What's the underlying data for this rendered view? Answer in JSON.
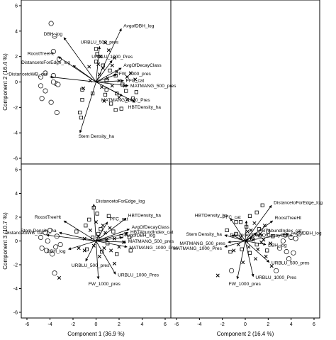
{
  "chart_data": [
    {
      "type": "scatter",
      "panel": "component-1-vs-component-2",
      "xlabel": "",
      "ylabel": "Component 2  (16.4 %)",
      "xlim": [
        -6,
        6
      ],
      "ylim": [
        -6,
        6
      ],
      "xticks": [],
      "yticks": [
        -6,
        -4,
        -2,
        0,
        2,
        4,
        6
      ],
      "vectors": [
        {
          "name": "DBH_log",
          "x": -2.8,
          "y": 3.5
        },
        {
          "name": "RoostTreeHt",
          "x": -3.3,
          "y": 2.0
        },
        {
          "name": "URBLU_500_pres",
          "x": 0.3,
          "y": 2.8
        },
        {
          "name": "AvgofDBH_log",
          "x": 2.2,
          "y": 4.2
        },
        {
          "name": "DistancetoForEdge_log",
          "x": -2.0,
          "y": 1.3
        },
        {
          "name": "URBLU_1000_Pres",
          "x": 1.4,
          "y": 1.7
        },
        {
          "name": "AvgOfDecayClass",
          "x": 2.2,
          "y": 1.1
        },
        {
          "name": "DistancetoWB_cat",
          "x": -4.0,
          "y": 0.4
        },
        {
          "name": "FW_1000_pres",
          "x": 1.8,
          "y": 0.6
        },
        {
          "name": "PFC_cat",
          "x": 2.4,
          "y": 0.1
        },
        {
          "name": "MATMANG_500_pres",
          "x": 2.8,
          "y": -0.3
        },
        {
          "name": "MATMANG_1000_Pres",
          "x": 2.3,
          "y": -1.1
        },
        {
          "name": "HBTDensity_ha",
          "x": 3.4,
          "y": -1.6
        },
        {
          "name": "Stem Density_ha",
          "x": -1.4,
          "y": -4.0
        }
      ],
      "circles": [
        [
          -3.9,
          4.6
        ],
        [
          -3.6,
          3.6
        ],
        [
          -3.7,
          2.4
        ],
        [
          -3.2,
          1.8
        ],
        [
          -4.8,
          0.4
        ],
        [
          -4.4,
          0.7
        ],
        [
          -3.7,
          0.5
        ],
        [
          -3.5,
          -0.1
        ],
        [
          -4.8,
          -0.3
        ],
        [
          -3.3,
          -0.2
        ],
        [
          -4.4,
          -0.7
        ],
        [
          -4.7,
          -1.3
        ],
        [
          -3.9,
          -1.6
        ],
        [
          -3.4,
          -2.4
        ],
        [
          -3.7,
          0.0
        ]
      ],
      "squares": [
        [
          0.0,
          2.6
        ],
        [
          0.1,
          2.2
        ],
        [
          0.0,
          1.6
        ],
        [
          0.6,
          1.3
        ],
        [
          1.2,
          0.9
        ],
        [
          1.7,
          0.5
        ],
        [
          0.9,
          0.1
        ],
        [
          -0.3,
          -0.9
        ],
        [
          -1.2,
          -0.6
        ],
        [
          -1.2,
          -1.4
        ],
        [
          0.8,
          -1.0
        ],
        [
          1.8,
          -0.9
        ],
        [
          2.3,
          -0.2
        ],
        [
          2.6,
          -0.7
        ],
        [
          3.2,
          -1.3
        ],
        [
          1.3,
          -1.7
        ],
        [
          1.7,
          -2.2
        ],
        [
          2.2,
          -2.1
        ],
        [
          -1.4,
          -2.4
        ],
        [
          -1.3,
          -2.8
        ],
        [
          0.9,
          -0.6
        ],
        [
          3.5,
          -0.8
        ]
      ],
      "crosses": [
        [
          0.8,
          3.1
        ],
        [
          1.1,
          2.5
        ],
        [
          0.4,
          2.0
        ],
        [
          1.6,
          1.9
        ],
        [
          1.4,
          1.3
        ],
        [
          0.6,
          1.1
        ],
        [
          0.3,
          0.6
        ],
        [
          1.0,
          0.3
        ],
        [
          2.0,
          0.1
        ],
        [
          2.7,
          0.4
        ],
        [
          3.0,
          0.7
        ],
        [
          1.4,
          -0.3
        ],
        [
          0.5,
          -0.4
        ],
        [
          -0.5,
          0.1
        ],
        [
          -1.1,
          -0.5
        ],
        [
          3.4,
          0.2
        ],
        [
          2.0,
          -1.2
        ],
        [
          2.7,
          -1.4
        ],
        [
          0.7,
          -1.5
        ],
        [
          2.5,
          -0.3
        ],
        [
          1.8,
          0.8
        ],
        [
          0.2,
          1.4
        ],
        [
          -0.6,
          1.2
        ]
      ]
    },
    {
      "type": "scatter",
      "panel": "component-1-vs-component-3",
      "xlabel": "Component 1  (36.9 %)",
      "ylabel": "Component 3  (10.7 %)",
      "xlim": [
        -6,
        6
      ],
      "ylim": [
        -6,
        6
      ],
      "xticks": [
        -6,
        -4,
        -2,
        0,
        2,
        4,
        6
      ],
      "yticks": [
        -6,
        -4,
        -2,
        0,
        2,
        4,
        6
      ],
      "vectors": [
        {
          "name": "DistancetoForEdge_log",
          "x": -0.2,
          "y": 3.1
        },
        {
          "name": "RoostTreeHt",
          "x": -2.8,
          "y": 1.7
        },
        {
          "name": "Stem Density_ha",
          "x": -3.2,
          "y": 0.7
        },
        {
          "name": "DistancetoWB_cat",
          "x": -4.3,
          "y": 0.5
        },
        {
          "name": "PFC_cat",
          "x": 1.0,
          "y": 1.6
        },
        {
          "name": "HBTDensity_ha",
          "x": 2.6,
          "y": 1.9
        },
        {
          "name": "AvgOfDecayClass",
          "x": 2.9,
          "y": 1.0
        },
        {
          "name": "HBTAbundIndex_cat",
          "x": 2.8,
          "y": 0.7
        },
        {
          "name": "AvgofDBH_log",
          "x": 2.3,
          "y": 0.3
        },
        {
          "name": "MATMANG_500_pres",
          "x": 2.6,
          "y": -0.1
        },
        {
          "name": "MATMANG_1000_Pres",
          "x": 2.7,
          "y": -0.5
        },
        {
          "name": "DBH_log",
          "x": -2.4,
          "y": -0.7
        },
        {
          "name": "URBLU_500_pres",
          "x": -0.9,
          "y": -1.7
        },
        {
          "name": "URBLU_1000_Pres",
          "x": 1.7,
          "y": -2.8
        },
        {
          "name": "FW_1000_pres",
          "x": 0.2,
          "y": -3.2
        }
      ],
      "circles": [
        [
          -4.8,
          0.3
        ],
        [
          -4.4,
          0.7
        ],
        [
          -4.0,
          0.9
        ],
        [
          -3.4,
          0.4
        ],
        [
          -4.7,
          -0.6
        ],
        [
          -4.3,
          -0.8
        ],
        [
          -3.5,
          -0.5
        ],
        [
          -3.1,
          -0.3
        ],
        [
          -3.8,
          -1.1
        ],
        [
          -4.2,
          0.0
        ],
        [
          -3.6,
          -2.7
        ]
      ],
      "squares": [
        [
          -0.2,
          2.8
        ],
        [
          0.1,
          2.3
        ],
        [
          1.1,
          2.1
        ],
        [
          -0.6,
          1.8
        ],
        [
          -0.9,
          1.3
        ],
        [
          0.4,
          1.0
        ],
        [
          1.5,
          0.8
        ],
        [
          2.2,
          0.4
        ],
        [
          -0.3,
          0.3
        ],
        [
          1.0,
          -0.2
        ],
        [
          2.9,
          0.3
        ],
        [
          -0.8,
          -0.7
        ],
        [
          0.5,
          -0.9
        ],
        [
          1.8,
          -1.1
        ],
        [
          3.0,
          -0.8
        ],
        [
          0.2,
          0.6
        ],
        [
          -1.7,
          0.8
        ]
      ],
      "crosses": [
        [
          0.0,
          1.6
        ],
        [
          0.6,
          1.3
        ],
        [
          1.2,
          1.1
        ],
        [
          -0.5,
          0.9
        ],
        [
          0.2,
          0.4
        ],
        [
          0.9,
          0.1
        ],
        [
          1.6,
          0.2
        ],
        [
          2.4,
          -0.1
        ],
        [
          -1.0,
          0.2
        ],
        [
          -0.2,
          -0.4
        ],
        [
          0.7,
          -0.6
        ],
        [
          1.3,
          -0.8
        ],
        [
          2.0,
          -0.5
        ],
        [
          -1.5,
          -0.6
        ],
        [
          0.3,
          -1.3
        ],
        [
          1.6,
          -1.9
        ],
        [
          -3.2,
          -3.1
        ],
        [
          2.6,
          0.6
        ],
        [
          -1.0,
          -0.8
        ],
        [
          0.8,
          0.7
        ]
      ]
    },
    {
      "type": "scatter",
      "panel": "component-2-vs-component-3",
      "xlabel": "Component 2  (16.4 %)",
      "ylabel": "",
      "xlim": [
        -6,
        6
      ],
      "ylim": [
        -6,
        6
      ],
      "xticks": [
        -6,
        -4,
        -2,
        0,
        2,
        4,
        6
      ],
      "yticks": [],
      "vectors": [
        {
          "name": "DistancetoForEdge_log",
          "x": 2.3,
          "y": 3.0
        },
        {
          "name": "HBTDensity_ha",
          "x": -1.3,
          "y": 1.9
        },
        {
          "name": "PFC_cat",
          "x": 0.1,
          "y": 1.7
        },
        {
          "name": "RoostTreeHt",
          "x": 2.4,
          "y": 1.7
        },
        {
          "name": "HBTAbundIndex_cat",
          "x": 1.0,
          "y": 0.7
        },
        {
          "name": "AvgofDBH_log",
          "x": 3.8,
          "y": 0.6
        },
        {
          "name": "Stem Density_ha",
          "x": -1.8,
          "y": 0.5
        },
        {
          "name": "DistancetoEdge",
          "x": -1.2,
          "y": 0.5
        },
        {
          "name": "AvgOfDecayClass",
          "x": 0.6,
          "y": 0.3
        },
        {
          "name": "MATMANG_500_pres",
          "x": -1.5,
          "y": -0.1
        },
        {
          "name": "MATMANG_1000_Pres",
          "x": -1.8,
          "y": -0.5
        },
        {
          "name": "DBH_log",
          "x": 1.8,
          "y": -0.3
        },
        {
          "name": "URBLU_500_pres",
          "x": 2.1,
          "y": -1.8
        },
        {
          "name": "URBLU_1000_Pres",
          "x": 0.7,
          "y": -3.0
        },
        {
          "name": "FW_1000_pres",
          "x": -0.7,
          "y": -3.2
        }
      ],
      "circles": [
        [
          3.5,
          0.5
        ],
        [
          4.0,
          0.3
        ],
        [
          4.4,
          0.2
        ],
        [
          4.7,
          0.6
        ],
        [
          3.0,
          -0.6
        ],
        [
          3.6,
          -0.9
        ],
        [
          4.2,
          -1.0
        ],
        [
          3.8,
          -1.5
        ],
        [
          2.7,
          -2.5
        ],
        [
          -1.2,
          -2.5
        ],
        [
          3.3,
          0.0
        ]
      ],
      "squares": [
        [
          1.5,
          3.0
        ],
        [
          1.0,
          2.4
        ],
        [
          0.4,
          2.1
        ],
        [
          -0.4,
          1.6
        ],
        [
          0.1,
          1.2
        ],
        [
          1.2,
          1.0
        ],
        [
          2.0,
          0.8
        ],
        [
          -0.8,
          0.6
        ],
        [
          0.6,
          0.2
        ],
        [
          -1.6,
          0.9
        ],
        [
          2.4,
          0.4
        ],
        [
          1.0,
          -0.3
        ],
        [
          -0.3,
          -0.7
        ],
        [
          -1.3,
          -0.9
        ],
        [
          0.4,
          -1.0
        ],
        [
          1.9,
          -0.8
        ],
        [
          -0.8,
          1.6
        ]
      ],
      "crosses": [
        [
          0.8,
          1.5
        ],
        [
          1.7,
          1.3
        ],
        [
          0.2,
          0.8
        ],
        [
          1.3,
          0.6
        ],
        [
          -0.4,
          0.3
        ],
        [
          0.7,
          0.1
        ],
        [
          1.6,
          0.1
        ],
        [
          2.2,
          -0.2
        ],
        [
          -0.6,
          -0.3
        ],
        [
          0.3,
          -0.5
        ],
        [
          1.1,
          -0.7
        ],
        [
          1.8,
          -1.3
        ],
        [
          -1.0,
          -0.8
        ],
        [
          0.9,
          -1.5
        ],
        [
          -0.2,
          -1.8
        ],
        [
          2.3,
          -2.1
        ],
        [
          -2.4,
          -2.9
        ],
        [
          0.1,
          0.0
        ],
        [
          1.4,
          -0.1
        ],
        [
          0.5,
          0.9
        ]
      ]
    }
  ]
}
